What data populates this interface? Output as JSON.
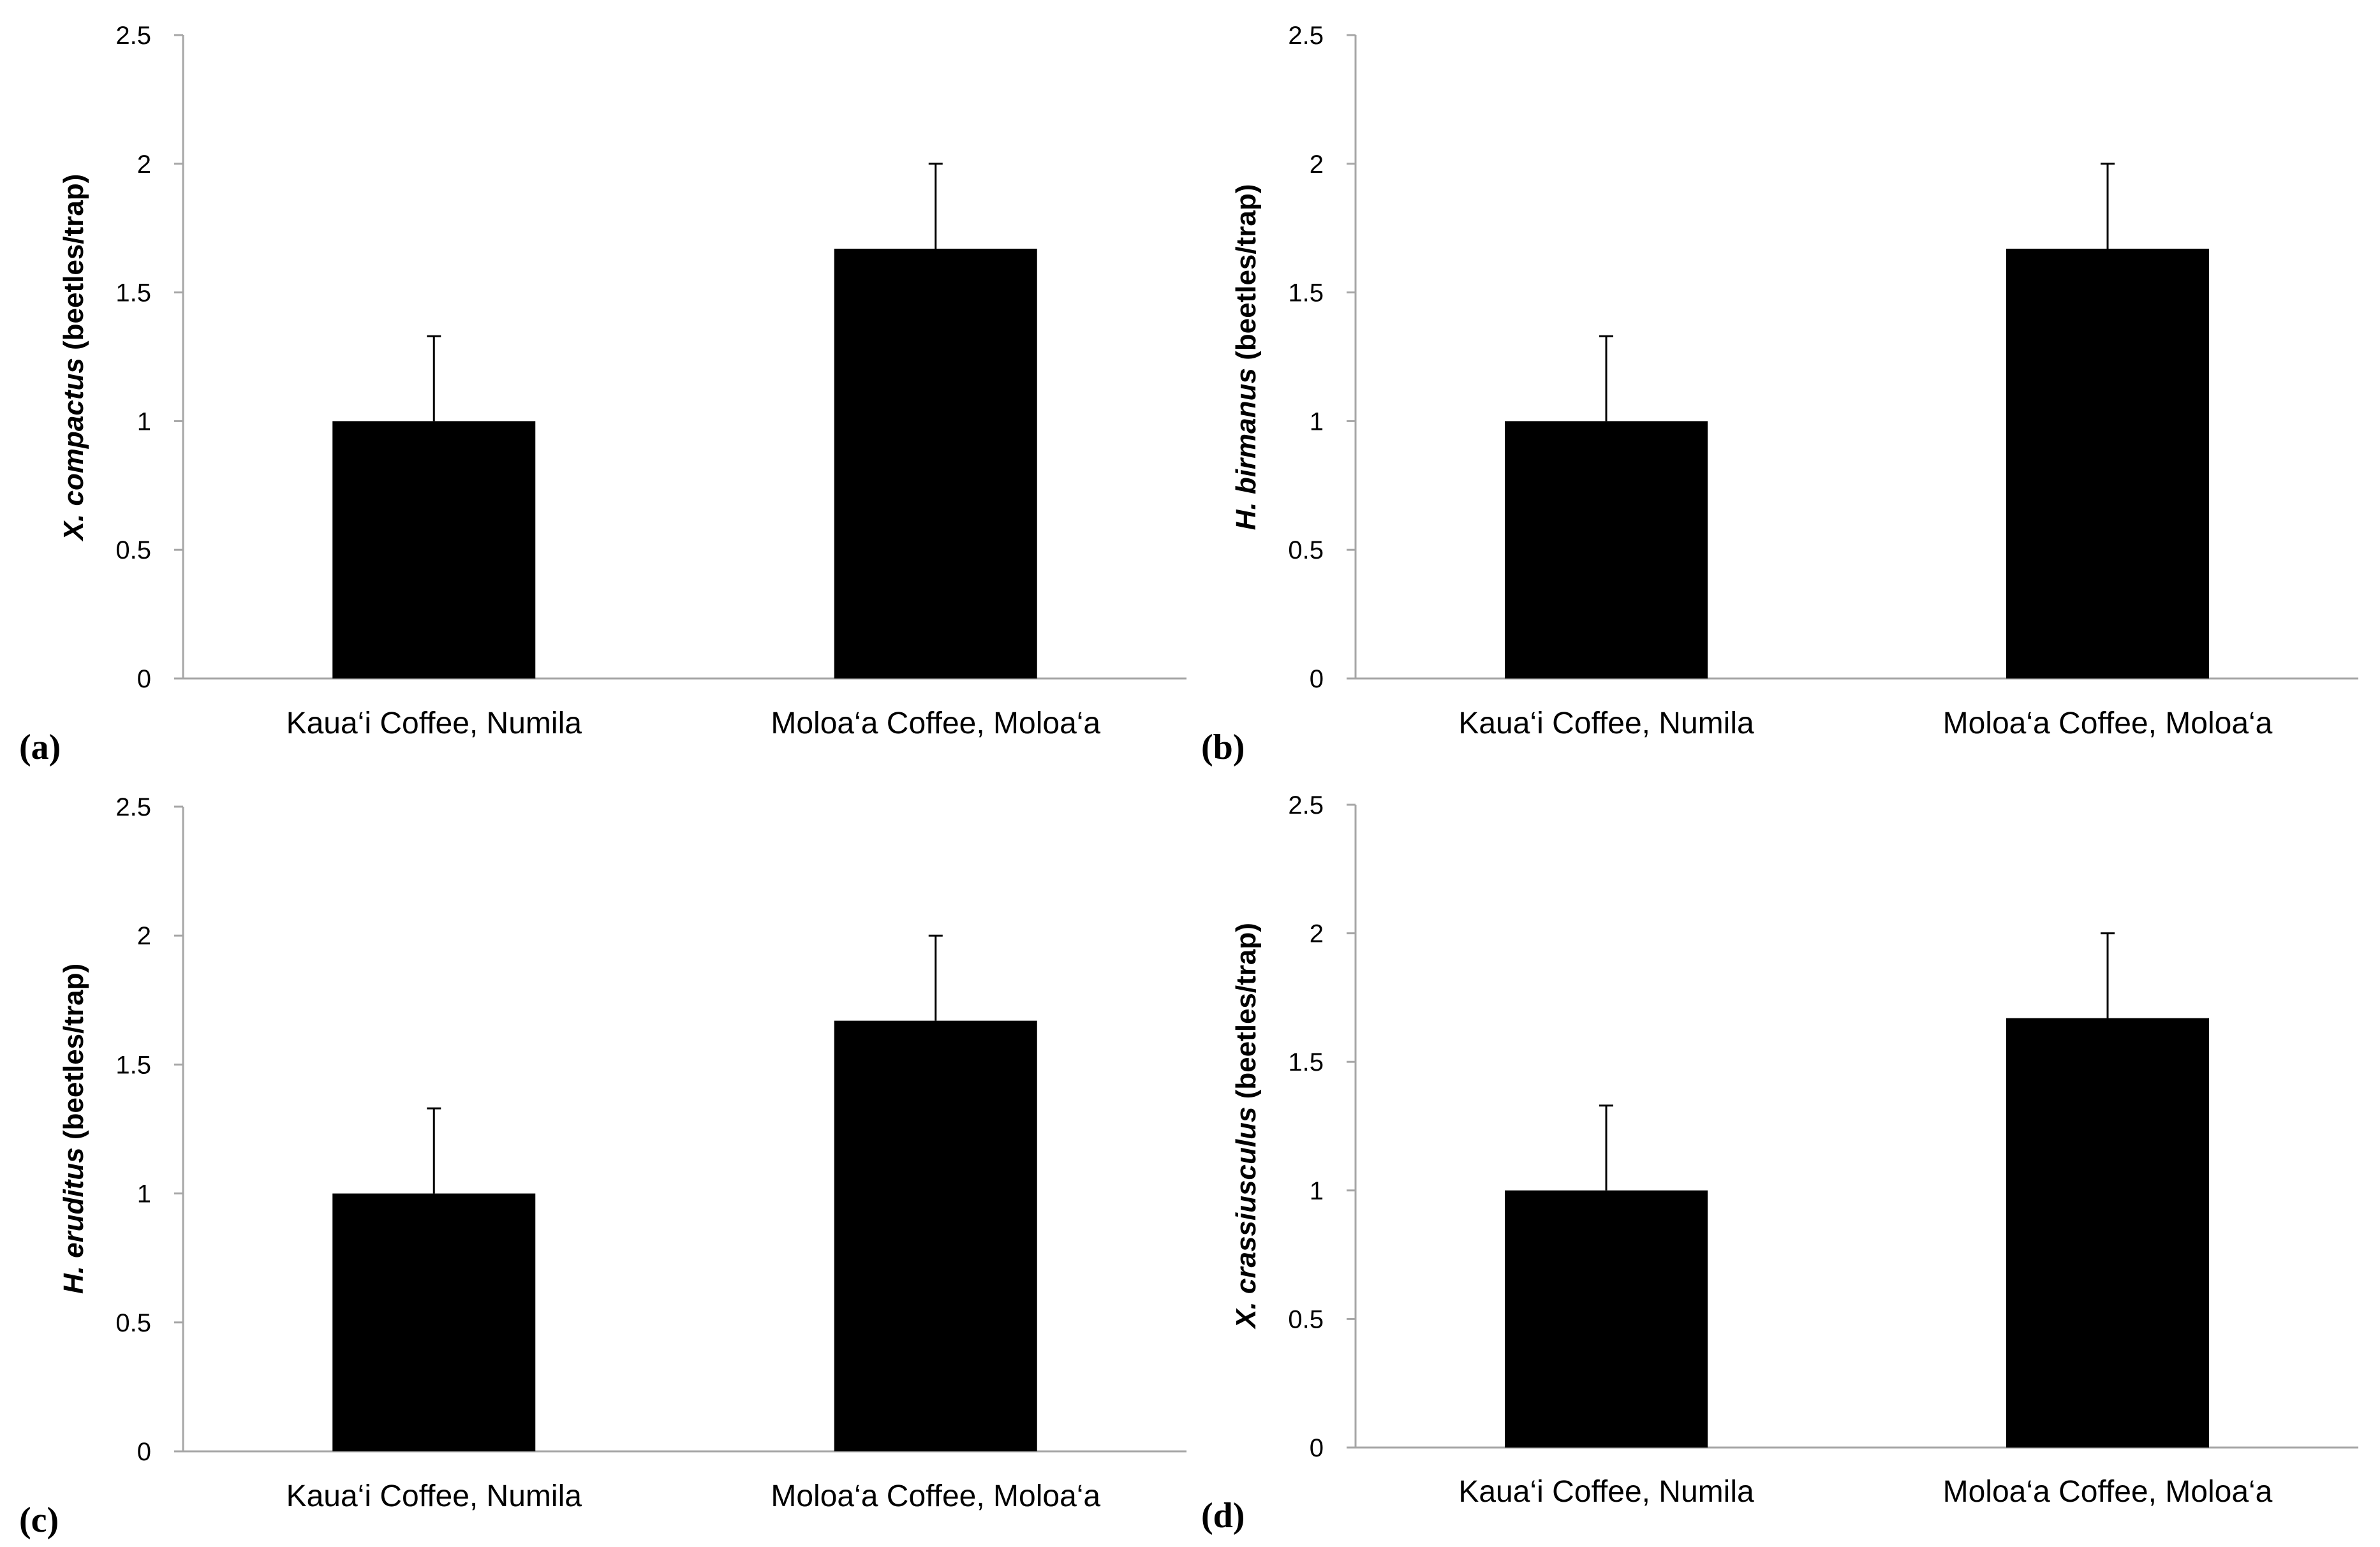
{
  "chart_data": [
    {
      "type": "bar",
      "panel_label": "(a)",
      "ylabel_italic": "X. compactus",
      "ylabel_rest": " (beetles/trap)",
      "categories": [
        "Kaua‘i Coffee, Numila",
        "Moloa‘a Coffee, Moloa‘a"
      ],
      "values": [
        1.0,
        1.67
      ],
      "errors": [
        0.33,
        0.33
      ],
      "ylim": [
        0,
        2.5
      ],
      "yticks": [
        "0",
        "0.5",
        "1",
        "1.5",
        "2",
        "2.5"
      ],
      "ytick_values": [
        0,
        0.5,
        1,
        1.5,
        2,
        2.5
      ],
      "grid": false
    },
    {
      "type": "bar",
      "panel_label": "(b)",
      "ylabel_italic": "H. birmanus",
      "ylabel_rest": " (beetles/trap)",
      "categories": [
        "Kaua‘i Coffee, Numila",
        "Moloa‘a Coffee, Moloa‘a"
      ],
      "values": [
        1.0,
        1.67
      ],
      "errors": [
        0.33,
        0.33
      ],
      "ylim": [
        0,
        2.5
      ],
      "yticks": [
        "0",
        "0.5",
        "1",
        "1.5",
        "2",
        "2.5"
      ],
      "ytick_values": [
        0,
        0.5,
        1,
        1.5,
        2,
        2.5
      ],
      "grid": false
    },
    {
      "type": "bar",
      "panel_label": "(c)",
      "ylabel_italic": "H. eruditus",
      "ylabel_rest": " (beetles/trap)",
      "categories": [
        "Kaua‘i Coffee, Numila",
        "Moloa‘a Coffee, Moloa‘a"
      ],
      "values": [
        1.0,
        1.67
      ],
      "errors": [
        0.33,
        0.33
      ],
      "ylim": [
        0,
        2.5
      ],
      "yticks": [
        "0",
        "0.5",
        "1",
        "1.5",
        "2",
        "2.5"
      ],
      "ytick_values": [
        0,
        0.5,
        1,
        1.5,
        2,
        2.5
      ],
      "grid": false
    },
    {
      "type": "bar",
      "panel_label": "(d)",
      "ylabel_italic": "X. crassiusculus",
      "ylabel_rest": " (beetles/trap)",
      "categories": [
        "Kaua‘i Coffee, Numila",
        "Moloa‘a Coffee, Moloa‘a"
      ],
      "values": [
        1.0,
        1.67
      ],
      "errors": [
        0.33,
        0.33
      ],
      "ylim": [
        0,
        2.5
      ],
      "yticks": [
        "0",
        "0.5",
        "1",
        "1.5",
        "2",
        "2.5"
      ],
      "ytick_values": [
        0,
        0.5,
        1,
        1.5,
        2,
        2.5
      ],
      "grid": false
    }
  ],
  "colors": {
    "bar": "#000000",
    "axis": "#a6a6a6",
    "error_bar": "#000000",
    "background": "#ffffff"
  }
}
